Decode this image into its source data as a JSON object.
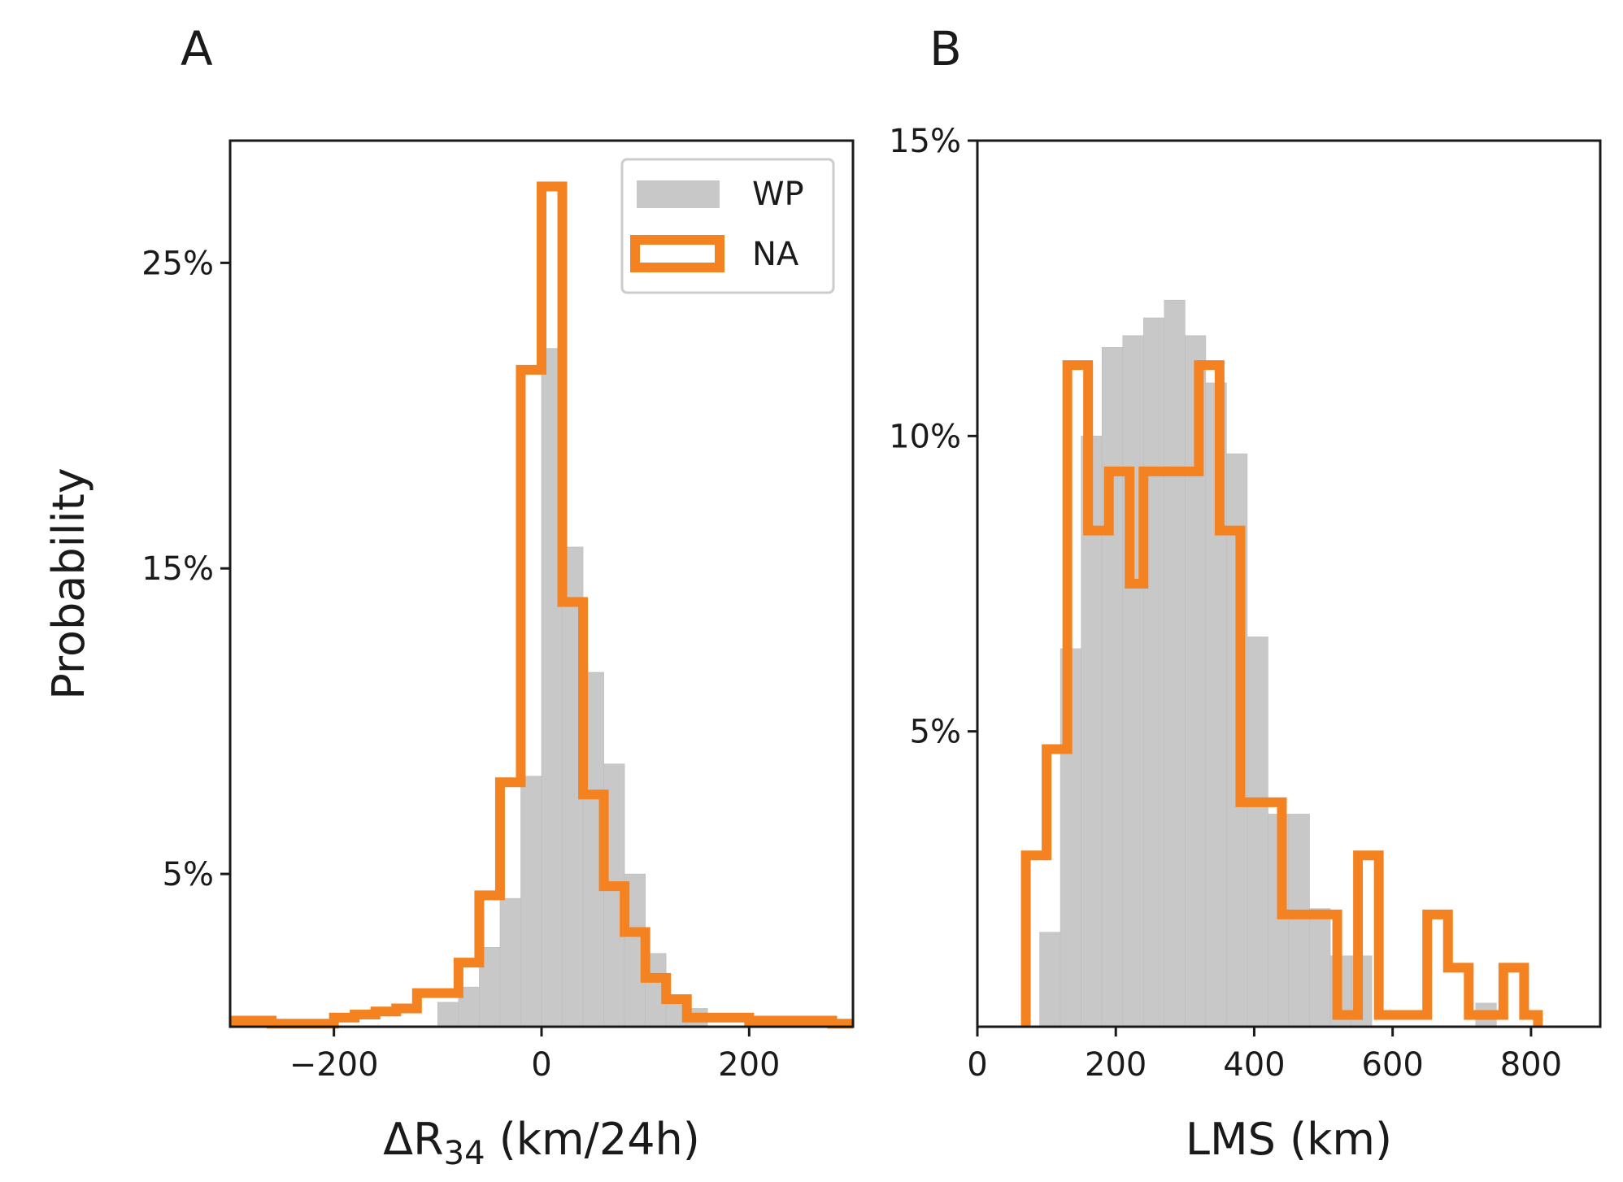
{
  "chart_data": [
    {
      "panel_label": "A",
      "type": "bar",
      "xlabel_main": "ΔR",
      "xlabel_sub": "34",
      "xlabel_tail": " (km/24h)",
      "ylabel": "Probability",
      "xlim": [
        -300,
        300
      ],
      "ylim": [
        0,
        29
      ],
      "xticks": [
        -200,
        0,
        200
      ],
      "xtick_labels": [
        "−200",
        "0",
        "200"
      ],
      "yticks": [
        5,
        15,
        25
      ],
      "ytick_labels": [
        "5%",
        "15%",
        "25%"
      ],
      "legend": {
        "position": "top-right",
        "entries": [
          "WP",
          "NA"
        ]
      },
      "series": [
        {
          "name": "WP",
          "style": "filled bars",
          "color": "#c8c8c8",
          "edges": [
            -100,
            -80,
            -60,
            -40,
            -20,
            0,
            20,
            40,
            60,
            80,
            100,
            120,
            140,
            160
          ],
          "values": [
            0.8,
            1.3,
            2.6,
            4.2,
            8.2,
            22.2,
            15.7,
            11.6,
            8.6,
            5.0,
            2.4,
            1.0,
            0.6
          ]
        },
        {
          "name": "NA",
          "style": "step outline",
          "color": "#f58220",
          "edges": [
            -300,
            -260,
            -220,
            -200,
            -180,
            -160,
            -140,
            -120,
            -80,
            -60,
            -40,
            -20,
            0,
            20,
            40,
            60,
            80,
            100,
            120,
            140,
            160,
            200,
            240,
            280,
            300
          ],
          "values": [
            0.2,
            0.1,
            0.1,
            0.3,
            0.4,
            0.5,
            0.6,
            1.1,
            2.1,
            4.3,
            8.0,
            21.5,
            27.5,
            13.9,
            7.6,
            4.6,
            3.1,
            1.6,
            0.9,
            0.3,
            0.3,
            0.2,
            0.2,
            0.1
          ]
        }
      ]
    },
    {
      "panel_label": "B",
      "type": "bar",
      "xlabel": "LMS (km)",
      "xlim": [
        0,
        900
      ],
      "ylim": [
        0,
        15
      ],
      "xticks": [
        0,
        200,
        400,
        600,
        800
      ],
      "xtick_labels": [
        "0",
        "200",
        "400",
        "600",
        "800"
      ],
      "yticks": [
        5,
        10,
        15
      ],
      "ytick_labels": [
        "5%",
        "10%",
        "15%"
      ],
      "series": [
        {
          "name": "WP",
          "style": "filled bars",
          "color": "#c8c8c8",
          "edges": [
            90,
            120,
            150,
            180,
            210,
            240,
            270,
            300,
            330,
            360,
            390,
            420,
            450,
            480,
            510,
            540,
            570,
            600,
            630,
            660,
            690,
            720,
            750
          ],
          "values": [
            1.6,
            6.4,
            10.0,
            11.5,
            11.7,
            12.0,
            12.3,
            11.7,
            10.9,
            9.7,
            6.6,
            3.6,
            3.6,
            2.0,
            1.2,
            1.2,
            0.0,
            0.0,
            0.0,
            0.0,
            0.0,
            0.4
          ]
        },
        {
          "name": "NA",
          "style": "step outline",
          "color": "#f58220",
          "edges": [
            70,
            100,
            130,
            160,
            190,
            220,
            240,
            270,
            320,
            350,
            380,
            440,
            460,
            490,
            520,
            550,
            580,
            610,
            650,
            680,
            710,
            760,
            790,
            810
          ],
          "values": [
            2.9,
            4.7,
            11.2,
            8.4,
            9.4,
            7.5,
            9.4,
            9.4,
            11.2,
            8.4,
            3.8,
            1.9,
            1.9,
            1.9,
            0.2,
            2.9,
            0.2,
            0.2,
            1.9,
            1.0,
            0.2,
            1.0,
            0.2
          ]
        }
      ]
    }
  ]
}
